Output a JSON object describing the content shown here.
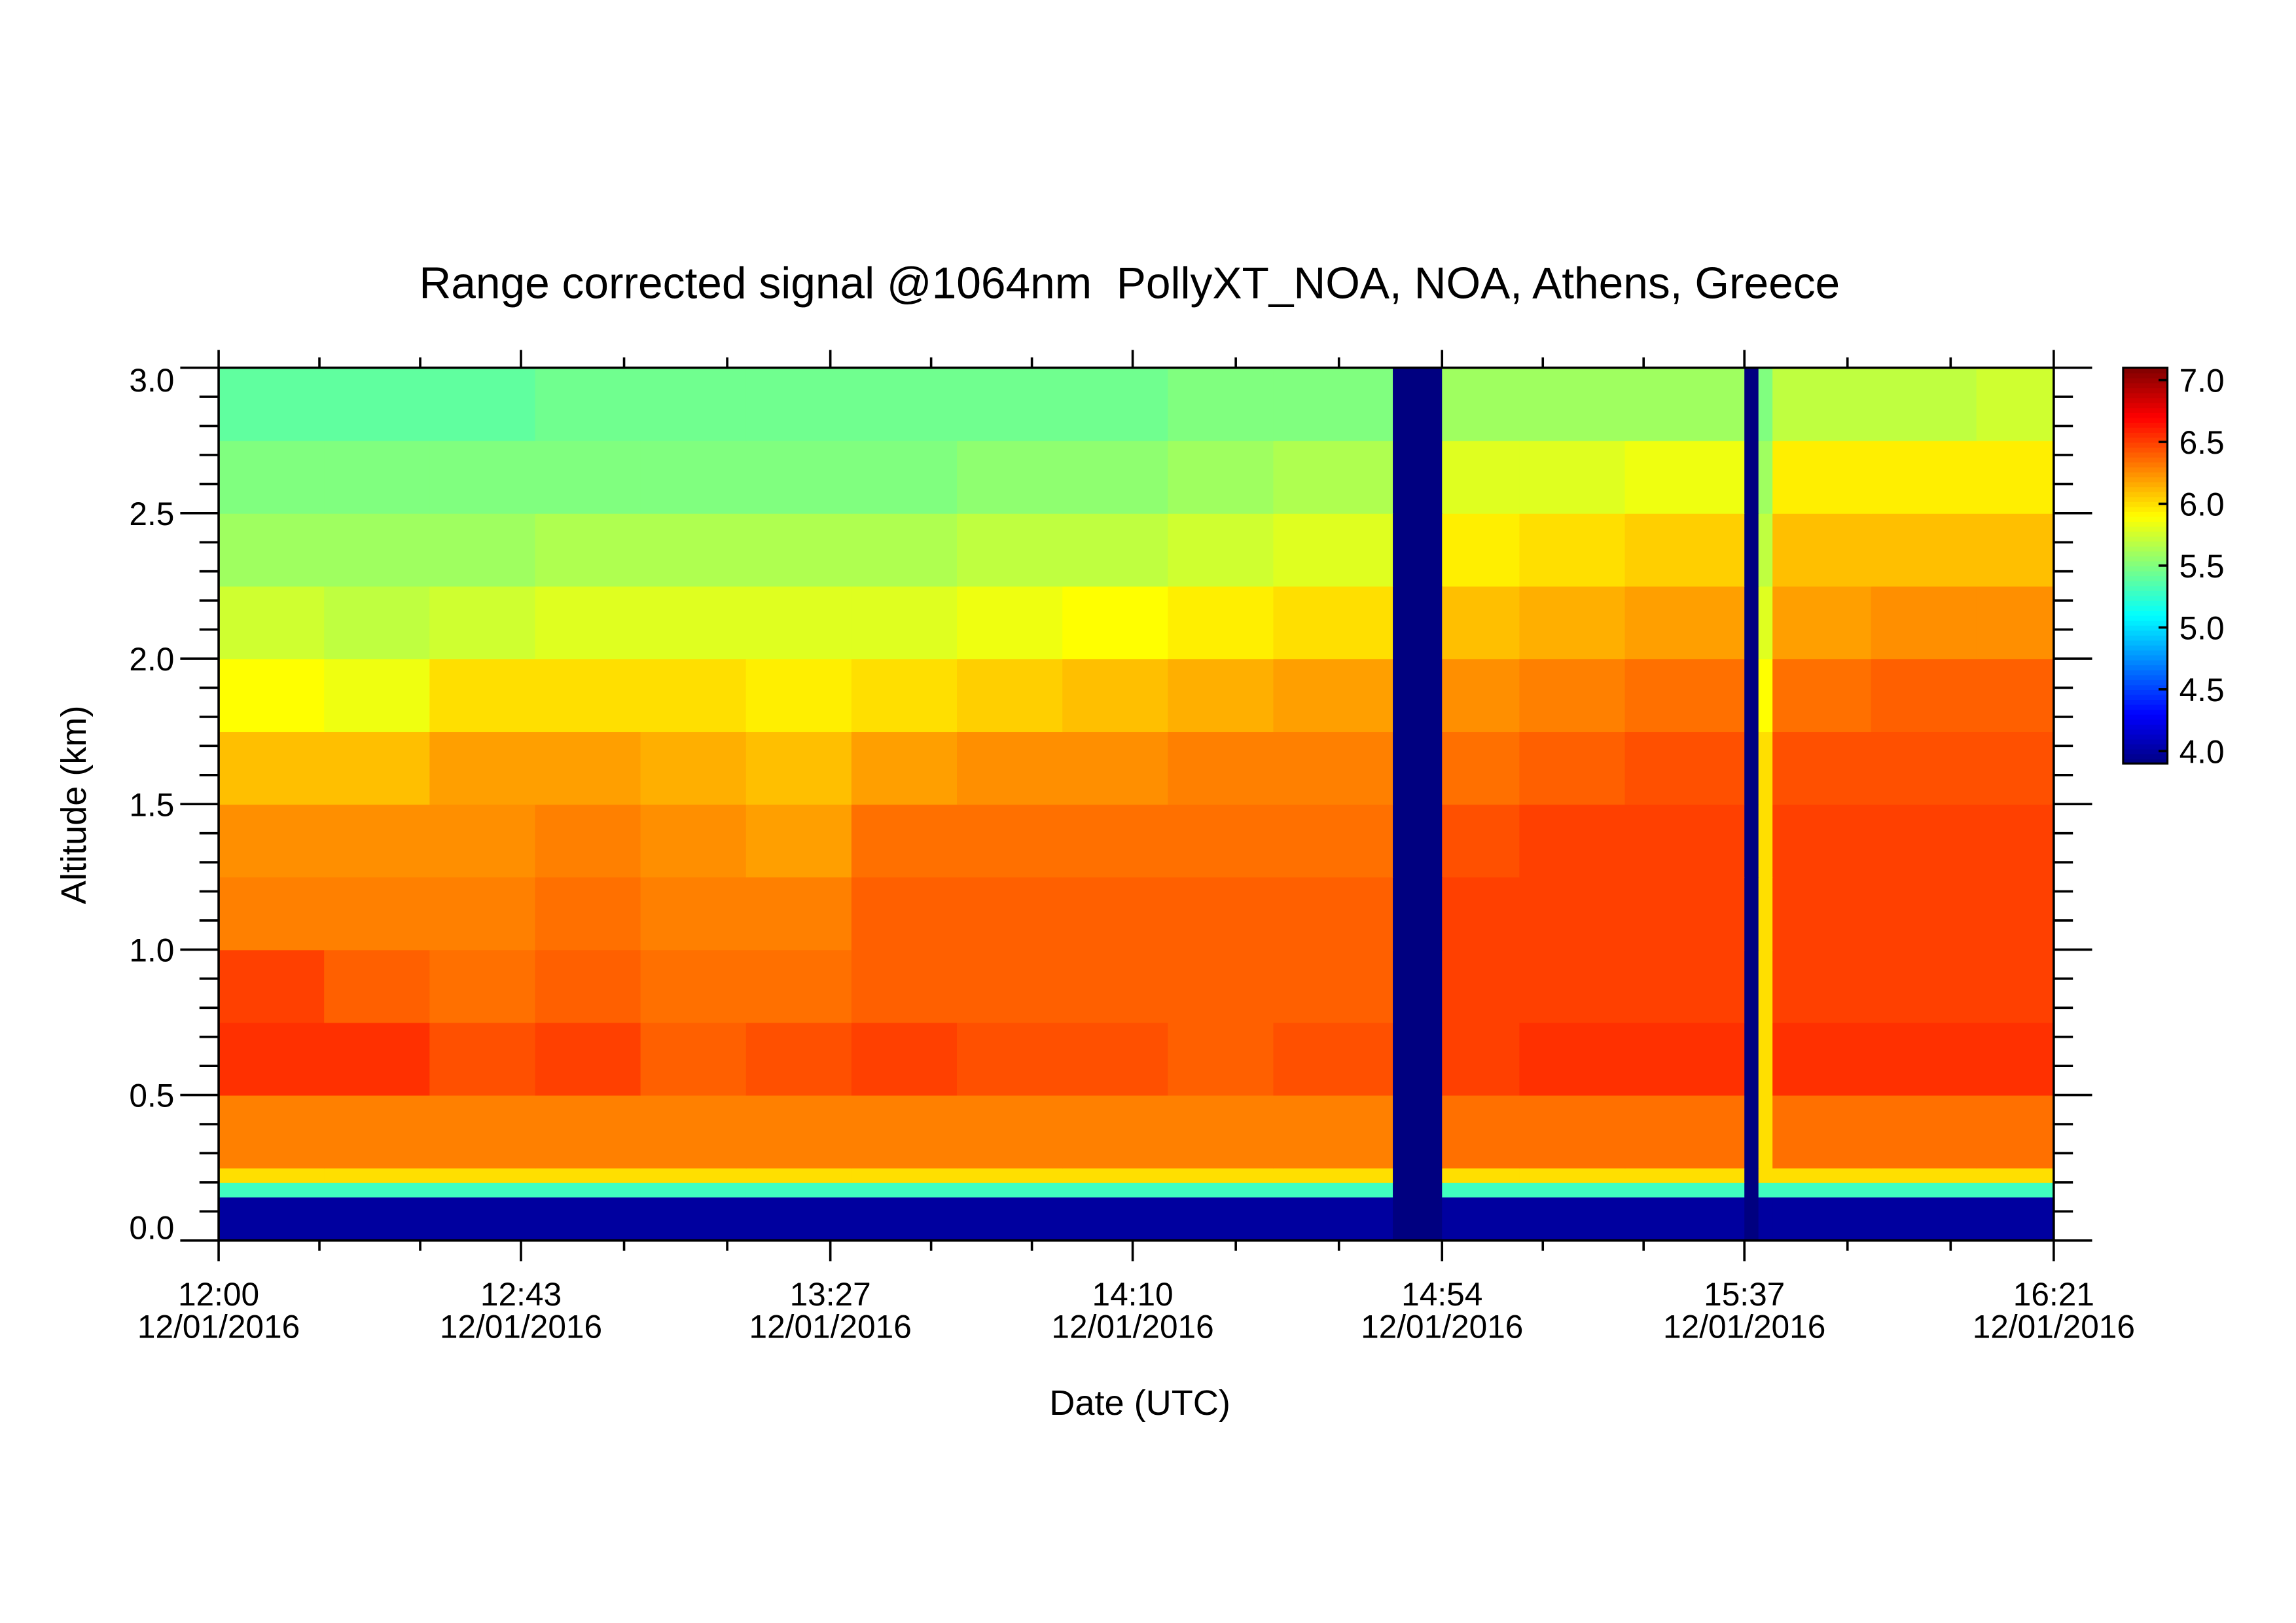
{
  "chart_data": {
    "type": "heatmap",
    "title": "Range corrected signal @1064nm  PollyXT_NOA, NOA, Athens, Greece",
    "x_label": "Date (UTC)",
    "y_label": "Altitude (km)",
    "x": [
      "12:00",
      "12:15",
      "12:30",
      "12:45",
      "13:00",
      "13:15",
      "13:30",
      "13:45",
      "14:00",
      "14:15",
      "14:30",
      "14:47",
      "14:54",
      "15:05",
      "15:20",
      "15:37",
      "15:39",
      "15:41",
      "15:55",
      "16:10",
      "16:21"
    ],
    "y": [
      0,
      0.15,
      0.2,
      0.25,
      0.5,
      0.75,
      1.0,
      1.25,
      1.5,
      1.75,
      2.0,
      2.25,
      2.5,
      2.75,
      3.0
    ],
    "z": [
      [
        4.0,
        4.0,
        4.0,
        4.0,
        4.0,
        4.0,
        4.0,
        4.0,
        4.0,
        4.0,
        4.0,
        3.9,
        4.0,
        4.0,
        4.0,
        3.9,
        4.0,
        4.0,
        4.0,
        4.0
      ],
      [
        5.3,
        5.3,
        5.3,
        5.3,
        5.3,
        5.3,
        5.3,
        5.3,
        5.3,
        5.3,
        5.3,
        3.9,
        5.3,
        5.3,
        5.3,
        3.9,
        5.3,
        5.3,
        5.3,
        5.3
      ],
      [
        6.0,
        6.0,
        6.0,
        6.0,
        6.0,
        6.0,
        6.0,
        6.0,
        6.0,
        6.0,
        6.0,
        3.9,
        6.0,
        6.0,
        6.0,
        3.9,
        6.0,
        6.0,
        6.0,
        6.0
      ],
      [
        6.3,
        6.3,
        6.3,
        6.3,
        6.3,
        6.3,
        6.3,
        6.3,
        6.3,
        6.3,
        6.3,
        3.9,
        6.35,
        6.35,
        6.35,
        3.9,
        6.0,
        6.35,
        6.35,
        6.35
      ],
      [
        6.55,
        6.55,
        6.45,
        6.5,
        6.4,
        6.45,
        6.5,
        6.45,
        6.45,
        6.4,
        6.45,
        3.9,
        6.5,
        6.55,
        6.55,
        3.9,
        6.0,
        6.55,
        6.55,
        6.55
      ],
      [
        6.5,
        6.4,
        6.35,
        6.4,
        6.35,
        6.35,
        6.4,
        6.4,
        6.4,
        6.4,
        6.4,
        3.9,
        6.5,
        6.5,
        6.5,
        3.9,
        6.0,
        6.5,
        6.5,
        6.5
      ],
      [
        6.3,
        6.3,
        6.3,
        6.35,
        6.3,
        6.3,
        6.4,
        6.4,
        6.4,
        6.4,
        6.4,
        3.9,
        6.5,
        6.5,
        6.5,
        3.9,
        6.0,
        6.5,
        6.5,
        6.5
      ],
      [
        6.25,
        6.25,
        6.25,
        6.3,
        6.25,
        6.2,
        6.35,
        6.35,
        6.35,
        6.35,
        6.35,
        3.9,
        6.45,
        6.5,
        6.5,
        3.9,
        6.0,
        6.5,
        6.5,
        6.5
      ],
      [
        6.1,
        6.1,
        6.2,
        6.2,
        6.15,
        6.1,
        6.2,
        6.25,
        6.25,
        6.3,
        6.3,
        3.9,
        6.35,
        6.4,
        6.45,
        3.9,
        6.0,
        6.45,
        6.45,
        6.45
      ],
      [
        5.9,
        5.85,
        6.0,
        6.0,
        6.0,
        5.95,
        6.0,
        6.05,
        6.1,
        6.15,
        6.2,
        3.9,
        6.25,
        6.3,
        6.35,
        3.9,
        5.9,
        6.35,
        6.4,
        6.4
      ],
      [
        5.75,
        5.7,
        5.75,
        5.8,
        5.8,
        5.8,
        5.8,
        5.85,
        5.9,
        5.95,
        6.0,
        3.9,
        6.1,
        6.15,
        6.2,
        3.9,
        5.8,
        6.2,
        6.25,
        6.25
      ],
      [
        5.6,
        5.6,
        5.6,
        5.65,
        5.65,
        5.65,
        5.65,
        5.7,
        5.7,
        5.75,
        5.8,
        3.9,
        5.95,
        6.0,
        6.05,
        3.9,
        5.7,
        6.1,
        6.1,
        6.1
      ],
      [
        5.5,
        5.5,
        5.5,
        5.5,
        5.5,
        5.5,
        5.5,
        5.55,
        5.55,
        5.6,
        5.65,
        3.9,
        5.8,
        5.8,
        5.85,
        3.9,
        5.6,
        5.95,
        5.95,
        5.95
      ],
      [
        5.4,
        5.4,
        5.4,
        5.45,
        5.45,
        5.45,
        5.45,
        5.45,
        5.45,
        5.5,
        5.5,
        3.9,
        5.6,
        5.6,
        5.6,
        3.9,
        5.5,
        5.7,
        5.7,
        5.75
      ]
    ],
    "xlim": [
      "12:00",
      "16:21"
    ],
    "xticks": [
      {
        "time": "12:00",
        "date": "12/01/2016"
      },
      {
        "time": "12:43",
        "date": "12/01/2016"
      },
      {
        "time": "13:27",
        "date": "12/01/2016"
      },
      {
        "time": "14:10",
        "date": "12/01/2016"
      },
      {
        "time": "14:54",
        "date": "12/01/2016"
      },
      {
        "time": "15:37",
        "date": "12/01/2016"
      },
      {
        "time": "16:21",
        "date": "12/01/2016"
      }
    ],
    "ylim": [
      0,
      3
    ],
    "yticks": [
      {
        "value": 0,
        "label": "0.0"
      },
      0.5,
      {
        "value": 1,
        "label": "1.0"
      },
      1.5,
      {
        "value": 2,
        "label": "2.0"
      },
      2.5,
      {
        "value": 3,
        "label": "3.0"
      }
    ],
    "colormap": "jet",
    "clim": [
      3.9,
      7.1
    ],
    "cticks": [
      {
        "value": 4,
        "label": "4.0"
      },
      4.5,
      {
        "value": 5,
        "label": "5.0"
      },
      5.5,
      {
        "value": 6,
        "label": "6.0"
      },
      6.5,
      {
        "value": 7,
        "label": "7.0"
      }
    ]
  }
}
